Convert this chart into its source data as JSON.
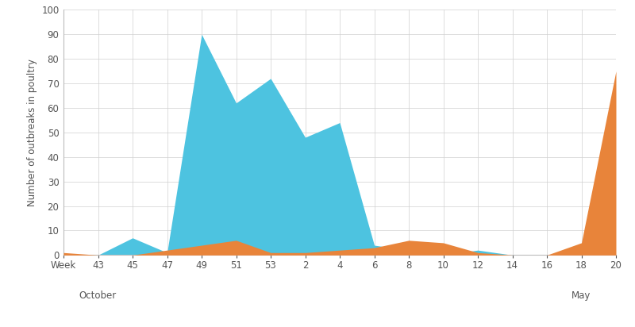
{
  "x_labels": [
    "Week",
    "43",
    "45",
    "47",
    "49",
    "51",
    "53",
    "2",
    "4",
    "6",
    "8",
    "10",
    "12",
    "14",
    "16",
    "18",
    "20"
  ],
  "x_positions": [
    0,
    1,
    2,
    3,
    4,
    5,
    6,
    7,
    8,
    9,
    10,
    11,
    12,
    13,
    14,
    15,
    16
  ],
  "month_labels": [
    [
      "October",
      1.0
    ],
    [
      "May",
      15.0
    ]
  ],
  "blue_data_y": [
    0,
    0,
    7,
    1,
    90,
    62,
    72,
    48,
    54,
    4,
    2,
    0,
    2,
    0,
    0,
    0,
    0
  ],
  "orange_data_y": [
    1,
    0,
    0,
    2,
    4,
    6,
    1,
    1,
    2,
    3,
    6,
    5,
    1,
    0,
    0,
    5,
    75
  ],
  "blue_color": "#4dc3e0",
  "orange_color": "#e8843a",
  "ylabel": "Number of outbreaks in poultry",
  "ylim": [
    0,
    100
  ],
  "yticks": [
    0,
    10,
    20,
    30,
    40,
    50,
    60,
    70,
    80,
    90,
    100
  ],
  "bg_color": "#ffffff",
  "grid_color": "#d0d0d0",
  "label_fontsize": 8.5,
  "tick_fontsize": 8.5,
  "month_fontsize": 8.5
}
